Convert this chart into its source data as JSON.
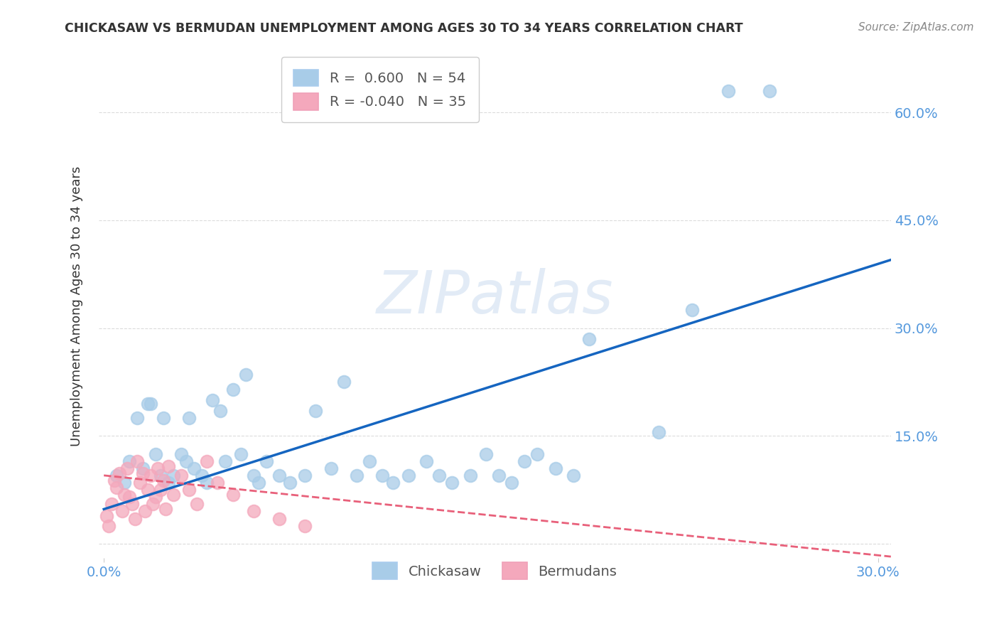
{
  "title": "CHICKASAW VS BERMUDAN UNEMPLOYMENT AMONG AGES 30 TO 34 YEARS CORRELATION CHART",
  "source": "Source: ZipAtlas.com",
  "ylabel": "Unemployment Among Ages 30 to 34 years",
  "xlim": [
    -0.002,
    0.305
  ],
  "ylim": [
    -0.02,
    0.68
  ],
  "x_ticks": [
    0.0,
    0.3
  ],
  "x_tick_labels": [
    "0.0%",
    "30.0%"
  ],
  "y_ticks": [
    0.0,
    0.15,
    0.3,
    0.45,
    0.6
  ],
  "y_tick_labels_right": [
    "",
    "15.0%",
    "30.0%",
    "45.0%",
    "60.0%"
  ],
  "chickasaw_color": "#a8cce8",
  "bermudans_color": "#f4a8bc",
  "trend_chickasaw_color": "#1565c0",
  "trend_bermudans_color": "#e8607a",
  "watermark_text": "ZIPatlas",
  "watermark_color": "#d0dff0",
  "watermark_alpha": 0.6,
  "legend_R_chickasaw": "0.600",
  "legend_N_chickasaw": "54",
  "legend_R_bermudans": "-0.040",
  "legend_N_bermudans": "35",
  "grid_color": "#cccccc",
  "background_color": "#ffffff",
  "tick_color": "#5599dd",
  "title_color": "#333333",
  "ylabel_color": "#333333",
  "source_color": "#888888",
  "chickasaw_x": [
    0.005,
    0.008,
    0.01,
    0.013,
    0.015,
    0.017,
    0.018,
    0.02,
    0.022,
    0.023,
    0.025,
    0.027,
    0.03,
    0.032,
    0.033,
    0.035,
    0.038,
    0.04,
    0.042,
    0.045,
    0.047,
    0.05,
    0.053,
    0.055,
    0.058,
    0.06,
    0.063,
    0.068,
    0.072,
    0.078,
    0.082,
    0.088,
    0.093,
    0.098,
    0.103,
    0.108,
    0.112,
    0.118,
    0.125,
    0.13,
    0.135,
    0.142,
    0.148,
    0.153,
    0.158,
    0.163,
    0.168,
    0.175,
    0.182,
    0.188,
    0.215,
    0.228,
    0.242,
    0.258
  ],
  "chickasaw_y": [
    0.095,
    0.085,
    0.115,
    0.175,
    0.105,
    0.195,
    0.195,
    0.125,
    0.095,
    0.175,
    0.085,
    0.095,
    0.125,
    0.115,
    0.175,
    0.105,
    0.095,
    0.085,
    0.2,
    0.185,
    0.115,
    0.215,
    0.125,
    0.235,
    0.095,
    0.085,
    0.115,
    0.095,
    0.085,
    0.095,
    0.185,
    0.105,
    0.225,
    0.095,
    0.115,
    0.095,
    0.085,
    0.095,
    0.115,
    0.095,
    0.085,
    0.095,
    0.125,
    0.095,
    0.085,
    0.115,
    0.125,
    0.105,
    0.095,
    0.285,
    0.155,
    0.325,
    0.63,
    0.63
  ],
  "bermudans_x": [
    0.001,
    0.002,
    0.003,
    0.004,
    0.005,
    0.006,
    0.007,
    0.008,
    0.009,
    0.01,
    0.011,
    0.012,
    0.013,
    0.014,
    0.015,
    0.016,
    0.017,
    0.018,
    0.019,
    0.02,
    0.021,
    0.022,
    0.023,
    0.024,
    0.025,
    0.027,
    0.03,
    0.033,
    0.036,
    0.04,
    0.044,
    0.05,
    0.058,
    0.068,
    0.078
  ],
  "bermudans_y": [
    0.038,
    0.025,
    0.055,
    0.088,
    0.078,
    0.098,
    0.045,
    0.068,
    0.105,
    0.065,
    0.055,
    0.035,
    0.115,
    0.085,
    0.098,
    0.045,
    0.075,
    0.095,
    0.055,
    0.065,
    0.105,
    0.075,
    0.088,
    0.048,
    0.108,
    0.068,
    0.095,
    0.075,
    0.055,
    0.115,
    0.085,
    0.068,
    0.045,
    0.035,
    0.025
  ],
  "trend_chickasaw_x0": 0.0,
  "trend_chickasaw_x1": 0.305,
  "trend_chickasaw_y0": 0.048,
  "trend_chickasaw_y1": 0.395,
  "trend_bermudans_x0": 0.0,
  "trend_bermudans_x1": 0.305,
  "trend_bermudans_y0": 0.095,
  "trend_bermudans_y1": -0.018
}
